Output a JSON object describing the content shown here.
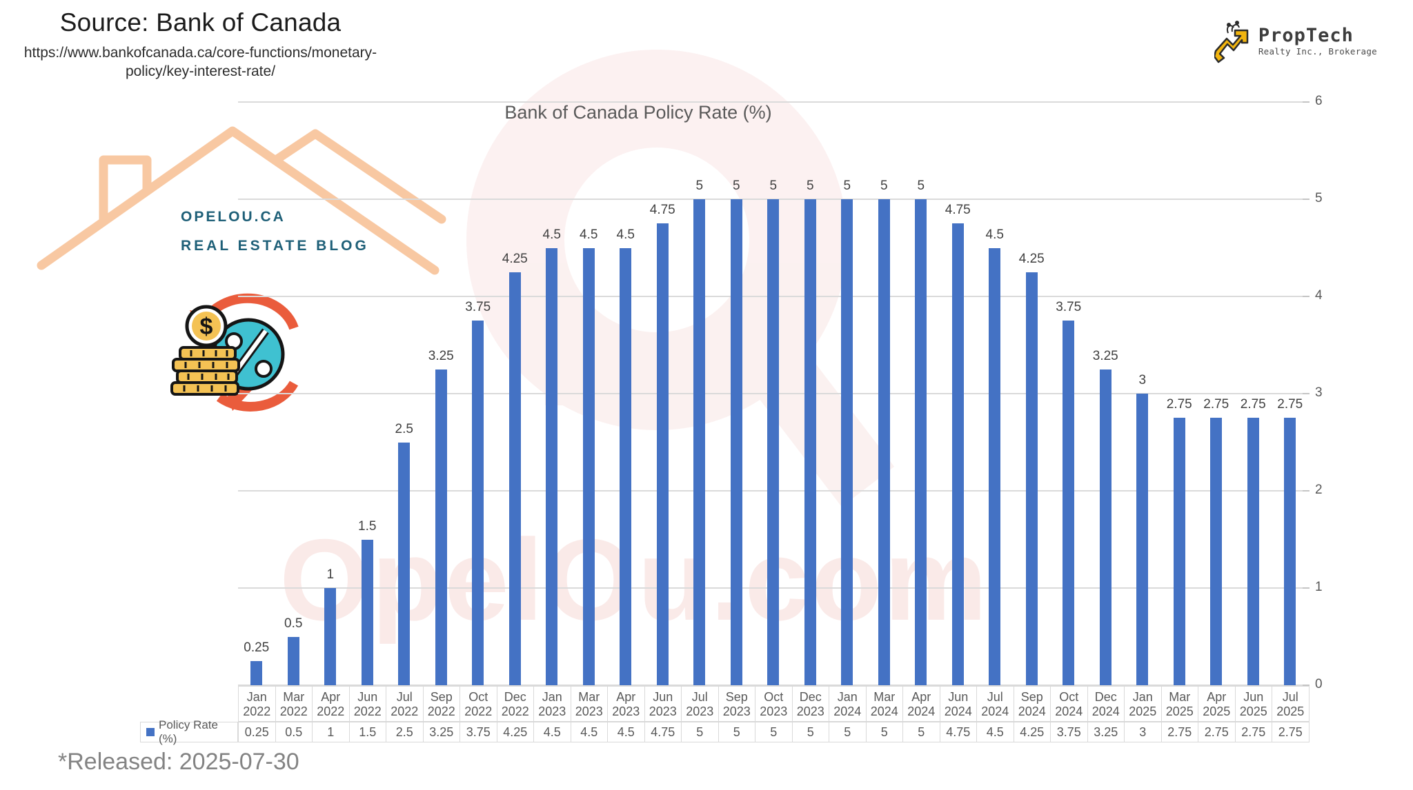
{
  "page": {
    "source_title": "Source: Bank of Canada",
    "source_url_line1": "https://www.bankofcanada.ca/core-functions/monetary-",
    "source_url_line2": "policy/key-interest-rate/",
    "released_note": "*Released: 2025-07-30"
  },
  "brand": {
    "name": "PropTech",
    "subtitle": "Realty Inc., Brokerage",
    "gold": "#F2B50F",
    "text_color": "#3D3D3D"
  },
  "watermark": {
    "site": "OPELOU.CA",
    "tagline": "REAL ESTATE BLOG",
    "big_text": "OpelOu.com",
    "peach": "#F8C8A2",
    "blue": "#1F6078",
    "pink": "#F7D9D7"
  },
  "chart_data": {
    "type": "bar",
    "title": "Bank of Canada Policy Rate (%)",
    "legend": "Policy Rate (%)",
    "categories": [
      "Jan 2022",
      "Mar 2022",
      "Apr 2022",
      "Jun 2022",
      "Jul 2022",
      "Sep 2022",
      "Oct 2022",
      "Dec 2022",
      "Jan 2023",
      "Mar 2023",
      "Apr 2023",
      "Jun 2023",
      "Jul 2023",
      "Sep 2023",
      "Oct 2023",
      "Dec 2023",
      "Jan 2024",
      "Mar 2024",
      "Apr 2024",
      "Jun 2024",
      "Jul 2024",
      "Sep 2024",
      "Oct 2024",
      "Dec 2024",
      "Jan 2025",
      "Mar 2025",
      "Apr 2025",
      "Jun 2025",
      "Jul 2025"
    ],
    "values": [
      0.25,
      0.5,
      1,
      1.5,
      2.5,
      3.25,
      3.75,
      4.25,
      4.5,
      4.5,
      4.5,
      4.75,
      5,
      5,
      5,
      5,
      5,
      5,
      5,
      4.75,
      4.5,
      4.25,
      3.75,
      3.25,
      3,
      2.75,
      2.75,
      2.75,
      2.75
    ],
    "ylim": [
      0,
      6
    ],
    "yticks": [
      0,
      1,
      2,
      3,
      4,
      5,
      6
    ],
    "bar_color": "#4472C4",
    "grid": true,
    "axis_side": "right",
    "data_labels": true,
    "legend_position": "bottom-left of data table"
  }
}
